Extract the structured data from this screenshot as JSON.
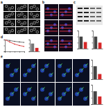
{
  "panels": [
    {
      "label": "a"
    },
    {
      "label": "b"
    },
    {
      "label": "c"
    },
    {
      "label": "d"
    },
    {
      "label": "e"
    }
  ],
  "chart_data": [
    {
      "type": "line",
      "x": [
        0,
        1,
        2,
        3,
        4
      ],
      "xlim": [
        0,
        4
      ],
      "xticks": [
        0,
        1,
        2,
        3,
        4
      ],
      "ylim": [
        0,
        100
      ],
      "yticks": [
        0,
        50,
        100
      ],
      "tick_labels": false,
      "series": [
        {
          "color": "#555555",
          "values": [
            100,
            92,
            85,
            80,
            76
          ]
        },
        {
          "color": "#d62728",
          "values": [
            100,
            80,
            62,
            50,
            42
          ]
        }
      ]
    },
    {
      "type": "bar",
      "categories": [
        null,
        null
      ],
      "values": [
        1.0,
        0.45
      ],
      "colors": [
        "#777777",
        "#d62728"
      ],
      "ylim": [
        0,
        1.5
      ],
      "yticks": [
        0,
        0.5,
        1,
        1.5
      ],
      "tick_labels": false
    },
    {
      "type": "bar",
      "categories": [
        null,
        null
      ],
      "values": [
        1.0,
        0.55
      ],
      "colors": [
        "#444444",
        "#d62728"
      ],
      "ylim": [
        0,
        1.5
      ],
      "yticks": [
        0,
        0.5,
        1,
        1.5
      ],
      "tick_labels": false
    },
    {
      "type": "bar",
      "categories": [
        null,
        null
      ],
      "values": [
        1.0,
        0.5
      ],
      "colors": [
        "#444444",
        "#d62728"
      ],
      "ylim": [
        0,
        1.5
      ],
      "yticks": [
        0,
        0.5,
        1,
        1.5
      ],
      "tick_labels": false
    },
    {
      "type": "bar",
      "categories": [
        null,
        null
      ],
      "values": [
        1.0,
        0.4
      ],
      "colors": [
        "#444444",
        "#d62728"
      ],
      "ylim": [
        0,
        1.5
      ],
      "yticks": [
        0,
        0.5,
        1,
        1.5
      ],
      "tick_labels": false
    },
    {
      "type": "bar",
      "categories": [
        null,
        null
      ],
      "values": [
        1.0,
        0.6
      ],
      "colors": [
        "#444444",
        "#d62728"
      ],
      "ylim": [
        0,
        1.5
      ],
      "yticks": [
        0,
        0.5,
        1,
        1.5
      ],
      "tick_labels": false
    }
  ]
}
